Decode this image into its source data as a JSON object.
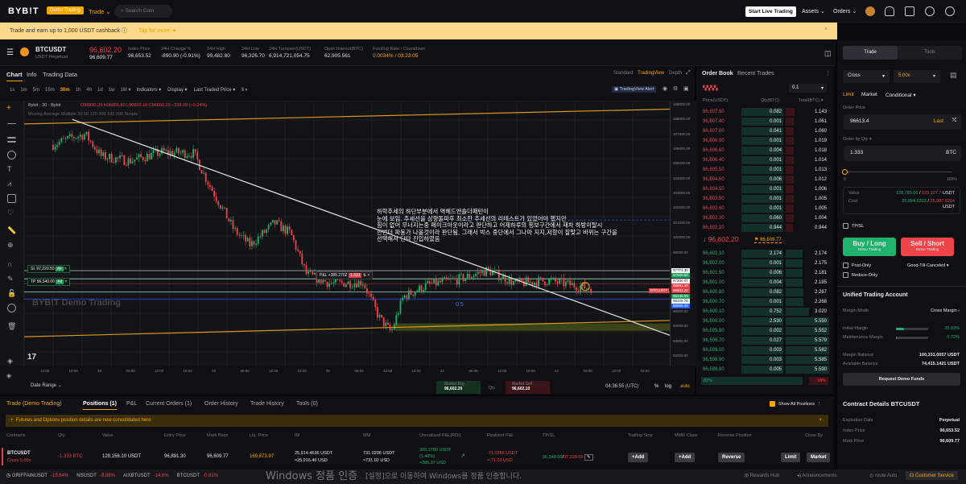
{
  "nav": {
    "logo": "BYB!T",
    "demo_badge": "Demo Trading",
    "trade": "Trade ⌄",
    "search_placeholder": "Search Coin",
    "start_live": "Start Live Trading",
    "assets": "Assets ⌄",
    "orders": "Orders ⌄"
  },
  "banner": {
    "text": "Trade and earn up to 1,000 USDT cashback ⓘ",
    "link": "Tap for more ➜",
    "close": "×"
  },
  "ticker": {
    "symbol": "BTCUSDT",
    "type": "USDT Perpetual",
    "last": "96,602.20",
    "mark": "96,609.77",
    "stats": [
      {
        "label": "Index Price",
        "value": "96,653.52"
      },
      {
        "label": "24H Change %",
        "value": "-890.90 (-0.91%)",
        "red": true
      },
      {
        "label": "24H High",
        "value": "99,482.80"
      },
      {
        "label": "24H Low",
        "value": "96,326.70"
      },
      {
        "label": "24H Turnover(USDT)",
        "value": "6,914,721,054.75"
      },
      {
        "label": "Open Interest(BTC)",
        "value": "62,905.561"
      },
      {
        "label": "Funding Rate / Countdown",
        "value": "0.0034% / 03:23:05"
      }
    ]
  },
  "chart": {
    "tabs": [
      "Chart",
      "Info",
      "Trading Data"
    ],
    "views": [
      "Standard",
      "TradingView",
      "Depth"
    ],
    "intervals": [
      "1s",
      "1m",
      "5m",
      "15m",
      "30m",
      "1h",
      "4h",
      "1d",
      "1w",
      "1M ▾"
    ],
    "active_interval": "30m",
    "menus": [
      "Indicators ▾",
      "Display ▾",
      "Last Traded Price ▾",
      "⦀ ▾"
    ],
    "tv_alert": "TradingView Alert",
    "legend_symbol": "Bybit · 30 · Bybit",
    "ohlc": "O96830.20 H96855.80 L96602.10 C96602.20 −228.00 (−0.24%)",
    "ma_label": "Moving Average Multiple 20 50 120 200 100 200 Simple",
    "price_axis": [
      "109000.00",
      "108000.00",
      "107000.00",
      "106000.00",
      "105000.00",
      "104000.00",
      "103000.00",
      "102000.00",
      "101000.00",
      "100000.00",
      "99000.00",
      "95000.00",
      "94000.00",
      "93000.00",
      "92000.00"
    ],
    "price_tags": [
      {
        "v": "97773.30",
        "c": "#ffffff",
        "t": "#111"
      },
      {
        "v": "97220.50",
        "c": "#1f9d5a",
        "t": "#fff"
      },
      {
        "v": "97200.07",
        "c": "#ffffff",
        "t": "#111"
      },
      {
        "v": "96891.30",
        "c": "#e0404a",
        "t": "#fff"
      },
      {
        "v": "96602.20",
        "c": "#e0404a",
        "t": "#fff"
      },
      {
        "v": "96340.00",
        "c": "#1f9d5a",
        "t": "#fff"
      },
      {
        "v": "96326.70",
        "c": "#ffffff",
        "t": "#111"
      },
      {
        "v": "95856.40",
        "c": "#2962ff",
        "t": "#fff"
      }
    ],
    "symbol_tag": "BTCUSDT",
    "sl": "SL 97,220.50",
    "tp": "TP 96,340.00",
    "all": "All",
    "pnl": "P&L +385.2702",
    "pnl_qty": "1.333",
    "fib": "0.5",
    "annotation": [
      "하락추세의 하단부분에서 역헤드앤숄더패턴이",
      "눈에 보임. 추세선을 상향돌파후 최소한 추세선의 리테스트가 있었어야 했지만",
      "힘이 없어 무너지는중 페이크아웃이라고 판단하고 어제하루의 횡보구간에서 재차 하방이탈시",
      "한번더 파동가 나올것이라 판단됨, 그래서 박스 중단에서 그나마 지지,저항이 잘맞고 바뀌는 구간을",
      "선택해서 단타 진입하였음"
    ],
    "time_axis": [
      "12:00",
      "18:00",
      "18",
      "06:00",
      "12:00",
      "18:00",
      "19",
      "06:00",
      "12:00",
      "18:00",
      "20",
      "06:00",
      "12:00",
      "18:00",
      "21",
      "06:00",
      "12:00",
      "18:00",
      "22",
      "06:00",
      "12:00",
      "18:00"
    ],
    "watermark": "BYB!T Demo Trading",
    "date_range": "Date Range ⌄",
    "market_buy": "Market Buy",
    "market_buy_price": "96,602.20",
    "qty": "Qty",
    "market_sell": "Market Sell",
    "market_sell_price": "96,602.10",
    "clock": "04:36:55 (UTC)",
    "pct": "%",
    "log": "log",
    "auto": "auto"
  },
  "orderbook": {
    "tabs": [
      "Order Book",
      "Recent Trades"
    ],
    "precision": "0.1",
    "headers": [
      "Price(USDT)",
      "Qty(BTC)",
      "Total(BTC) ▾"
    ],
    "asks": [
      [
        "96,607.60",
        "0.082",
        "1.143"
      ],
      [
        "96,607.40",
        "0.001",
        "1.061"
      ],
      [
        "96,607.00",
        "0.041",
        "1.060"
      ],
      [
        "96,606.90",
        "0.001",
        "1.019"
      ],
      [
        "96,606.60",
        "0.004",
        "1.018"
      ],
      [
        "96,606.40",
        "0.001",
        "1.014"
      ],
      [
        "96,605.50",
        "0.001",
        "1.013"
      ],
      [
        "96,604.60",
        "0.006",
        "1.012"
      ],
      [
        "96,604.50",
        "0.001",
        "1.006"
      ],
      [
        "96,603.50",
        "0.001",
        "1.005"
      ],
      [
        "96,602.60",
        "0.001",
        "1.005"
      ],
      [
        "96,602.30",
        "0.060",
        "1.004"
      ],
      [
        "96,602.20",
        "0.944",
        "0.944"
      ]
    ],
    "mid": "↓ 96,602.20",
    "mid_mark": "96,609.77",
    "bids": [
      [
        "96,602.10",
        "2.174",
        "2.174"
      ],
      [
        "96,602.00",
        "0.001",
        "2.175"
      ],
      [
        "96,601.60",
        "0.006",
        "2.181"
      ],
      [
        "96,601.00",
        "0.004",
        "2.185"
      ],
      [
        "96,600.80",
        "0.082",
        "2.267"
      ],
      [
        "96,600.70",
        "0.001",
        "2.268"
      ],
      [
        "96,600.10",
        "0.752",
        "3.020"
      ],
      [
        "96,600.00",
        "2.530",
        "5.550"
      ],
      [
        "96,599.90",
        "0.002",
        "5.552"
      ],
      [
        "96,599.70",
        "0.027",
        "5.579"
      ],
      [
        "96,599.00",
        "0.003",
        "5.582"
      ],
      [
        "96,598.90",
        "0.003",
        "5.585"
      ],
      [
        "96,598.80",
        "0.005",
        "5.590"
      ]
    ],
    "buy_pct": "82%",
    "sell_pct": "18%",
    "buy_ratio": 0.82
  },
  "order": {
    "tabs": [
      "Trade",
      "Tools"
    ],
    "margin": "Cross",
    "leverage": "5.00x",
    "types": [
      "Limit",
      "Market",
      "Conditional ▾"
    ],
    "price_label": "Order Price",
    "price": "96613.4",
    "last": "Last",
    "qty_label": "Order by Qty ▾",
    "qty": "1.333",
    "qty_unit": "BTC",
    "slider_min": "0",
    "slider_max": "100%",
    "slider_value": 0,
    "value_label": "Value",
    "value_buy": "128,785.66",
    "value_sell": "129,107.7",
    "cost_label": "Cost",
    "cost_buy": "25,884.6303",
    "cost_sell": "25,987.8214",
    "usdt": "USDT",
    "tpsl": "TP/SL",
    "buy": "Buy / Long",
    "sell": "Sell / Short",
    "demo": "Demo Trading",
    "post_only": "Post-Only",
    "reduce_only": "Reduce-Only",
    "tif": "Good-Till-Canceled ▾"
  },
  "account": {
    "title": "Unified Trading Account",
    "margin_mode_label": "Margin Mode",
    "margin_mode": "Cross Margin ›",
    "im_label": "Initial Margin",
    "im": "25.83%",
    "im_ratio": 0.2583,
    "mm_label": "Maintenance Margin",
    "mm": "0.72%",
    "mm_ratio": 0.0072,
    "mb_label": "Margin Balance",
    "mb": "100,331.6057 USDT",
    "ab_label": "Available Balance",
    "ab": "74,415.1421 USDT",
    "request": "Request Demo Funds"
  },
  "contract": {
    "title": "Contract Details BTCUSDT",
    "rows": [
      [
        "Expiration Date",
        "Perpetual"
      ],
      [
        "Index Price",
        "96,653.52"
      ],
      [
        "Mark Price",
        "96,609.77"
      ]
    ]
  },
  "positions": {
    "tabs": [
      "Trade (Demo Trading)",
      "Positions (1)",
      "P&L",
      "Current Orders (1)",
      "Order History",
      "Trade History",
      "Tools (0)"
    ],
    "show_all": "Show All Positions",
    "notice": "Futures and Options position details are now consolidated here",
    "headers": [
      "Contracts",
      "Qty",
      "Value",
      "Entry Price",
      "Mark Price",
      "Liq. Price",
      "IM",
      "MM",
      "Unrealized P&L(ROI)",
      "Realized P&L",
      "TP/SL",
      "Trailing Stop",
      "MMR Close",
      "Reverse Position",
      "Close By"
    ],
    "row": {
      "contract": "BTCUSDT",
      "mode": "Cross 5.00x",
      "qty": "-1.333 BTC",
      "value": "129,156.10 USDT",
      "entry": "96,891.30",
      "mark": "96,609.77",
      "liq": "169,873.97",
      "im": "25,914.4636 USDT",
      "im2": "≈25,916.46 USD",
      "mm": "731.0236 USDT",
      "mm2": "≈731.02 USD",
      "upnl": "385.2703 USDT",
      "upnl2": "(1.48%)",
      "upnl3": "≈385.37 USD",
      "rpnl": "-71.0358 USDT",
      "rpnl2": "≈-71.03 USD",
      "tp": "96,340.00",
      "sl": "97,220.50",
      "add": "+Add",
      "reverse": "Reverse",
      "limit": "Limit",
      "market": "Market"
    }
  },
  "footer": {
    "tickers": [
      [
        "GRIFFAINUSDT",
        "-15.84%"
      ],
      [
        "NSUSDT",
        "-9.88%"
      ],
      [
        "AIXBTUSDT",
        "-14.6%"
      ],
      [
        "BTCUSDT",
        "-0.91%"
      ]
    ],
    "rewards": "Rewards Hub",
    "announcements": "Announcements",
    "route": "route Auto",
    "cs": "Customer Service"
  },
  "windows": {
    "line1": "Windows 정품 인증",
    "line2": "[설정]으로 이동하여 Windows를 정품 인증합니다."
  }
}
